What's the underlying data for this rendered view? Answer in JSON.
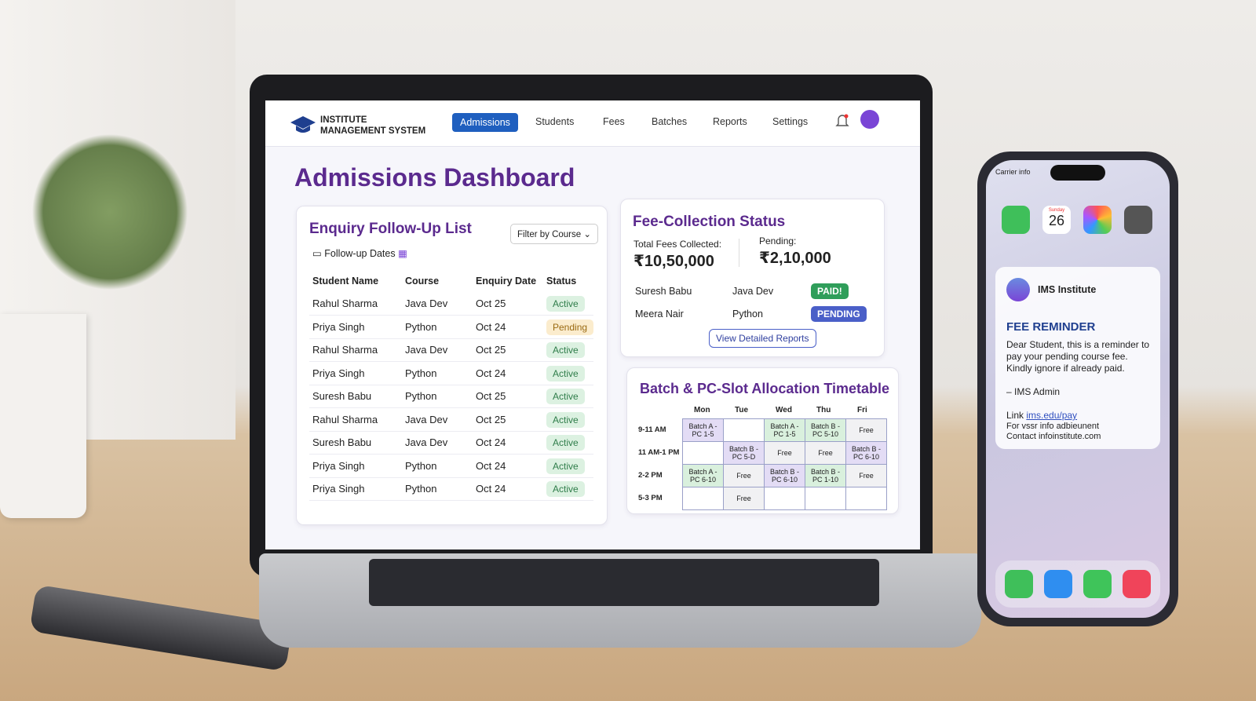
{
  "nav": {
    "brand": [
      "INSTITUTE",
      "MANAGEMENT SYSTEM"
    ],
    "items": [
      "Admissions",
      "Students",
      "Fees",
      "Batches",
      "Reports",
      "Settings"
    ]
  },
  "title": "Admissions Dashboard",
  "enquiry": {
    "title": "Enquiry Follow-Up List",
    "filter": "Filter by Course",
    "dates": "Follow-up Dates",
    "columns": [
      "Student Name",
      "Course",
      "Enquiry Date",
      "Status"
    ],
    "rows": [
      {
        "cells": [
          "Rahul Sharma",
          "Java Dev",
          "Oct 25",
          "Active"
        ],
        "status_style": {
          "bg": "#dcf1e1",
          "fg": "#2f7d4a"
        }
      },
      {
        "cells": [
          "Priya Singh",
          "Python",
          "Oct 24",
          "Pending"
        ],
        "status_style": {
          "bg": "#fbeccd",
          "fg": "#9a6a12"
        }
      },
      {
        "cells": [
          "Rahul Sharma",
          "Java Dev",
          "Oct 25",
          "Active"
        ],
        "status_style": {
          "bg": "#dcf1e1",
          "fg": "#2f7d4a"
        }
      },
      {
        "cells": [
          "Priya Singh",
          "Python",
          "Oct 24",
          "Active"
        ],
        "status_style": {
          "bg": "#dcf1e1",
          "fg": "#2f7d4a"
        }
      },
      {
        "cells": [
          "Suresh Babu",
          "Python",
          "Oct 25",
          "Active"
        ],
        "status_style": {
          "bg": "#dcf1e1",
          "fg": "#2f7d4a"
        }
      },
      {
        "cells": [
          "Rahul Sharma",
          "Java Dev",
          "Oct 25",
          "Active"
        ],
        "status_style": {
          "bg": "#dcf1e1",
          "fg": "#2f7d4a"
        }
      },
      {
        "cells": [
          "Suresh Babu",
          "Java Dev",
          "Oct 24",
          "Active"
        ],
        "status_style": {
          "bg": "#dcf1e1",
          "fg": "#2f7d4a"
        }
      },
      {
        "cells": [
          "Priya Singh",
          "Python",
          "Oct 24",
          "Active"
        ],
        "status_style": {
          "bg": "#dcf1e1",
          "fg": "#2f7d4a"
        }
      },
      {
        "cells": [
          "Priya Singh",
          "Python",
          "Oct 24",
          "Active"
        ],
        "status_style": {
          "bg": "#dcf1e1",
          "fg": "#2f7d4a"
        }
      }
    ]
  },
  "fees": {
    "title": "Fee-Collection Status",
    "total_label": "Total Fees Collected:",
    "total": "₹10,50,000",
    "pending_label": "Pending:",
    "pending": "₹2,10,000",
    "rows": [
      {
        "cells": [
          "Suresh Babu",
          "Java Dev",
          "PAID!"
        ],
        "badge_color": "#2f9e5a"
      },
      {
        "cells": [
          "Meera Nair",
          "Python",
          "PENDING"
        ],
        "badge_color": "#4a5fc8"
      }
    ],
    "button": "View Detailed Reports"
  },
  "timetable": {
    "title": "Batch & PC-Slot Allocation Timetable",
    "days": [
      "Mon",
      "Tue",
      "Wed",
      "Thu",
      "Fri"
    ],
    "slots": [
      "9-11 AM",
      "11 AM-1 PM",
      "2-2 PM",
      "5-3 PM"
    ],
    "cells": [
      [
        {
          "text": "Batch A - PC 1-5",
          "color": "#e3dcf5"
        },
        null,
        {
          "text": "Batch A - PC 1-5",
          "color": "#d9f0dd"
        },
        {
          "text": "Batch B - PC 5-10",
          "color": "#d9f0dd"
        },
        {
          "text": "Free",
          "color": "#f1f1f3"
        }
      ],
      [
        null,
        {
          "text": "Batch B - PC 5-D",
          "color": "#e3dcf5"
        },
        {
          "text": "Free",
          "color": "#f1f1f3"
        },
        {
          "text": "Free",
          "color": "#f1f1f3"
        },
        {
          "text": "Batch B - PC 6-10",
          "color": "#e3dcf5"
        }
      ],
      [
        {
          "text": "Batch A - PC 6-10",
          "color": "#d9f0dd"
        },
        {
          "text": "Free",
          "color": "#f1f1f3"
        },
        {
          "text": "Batch B - PC 6-10",
          "color": "#e3dcf5"
        },
        {
          "text": "Batch B - PC 1-10",
          "color": "#d9f0dd"
        },
        {
          "text": "Free",
          "color": "#f1f1f3"
        }
      ],
      [
        null,
        {
          "text": "Free",
          "color": "#f1f1f3"
        },
        null,
        null,
        null
      ]
    ]
  },
  "phone": {
    "carrier": "Carrier info",
    "calendar_day": "Sunday",
    "calendar_date": "26",
    "notification": {
      "app": "IMS Institute",
      "heading": "FEE REMINDER",
      "body": "Dear Student, this is a reminder to pay your pending course fee. Kindly ignore if already paid.",
      "sign": "– IMS Admin",
      "link_label": "Link",
      "link": "ims.edu/pay",
      "lines": [
        "For vssr info adbieunent",
        "Contact infoinstitute.com"
      ]
    }
  }
}
